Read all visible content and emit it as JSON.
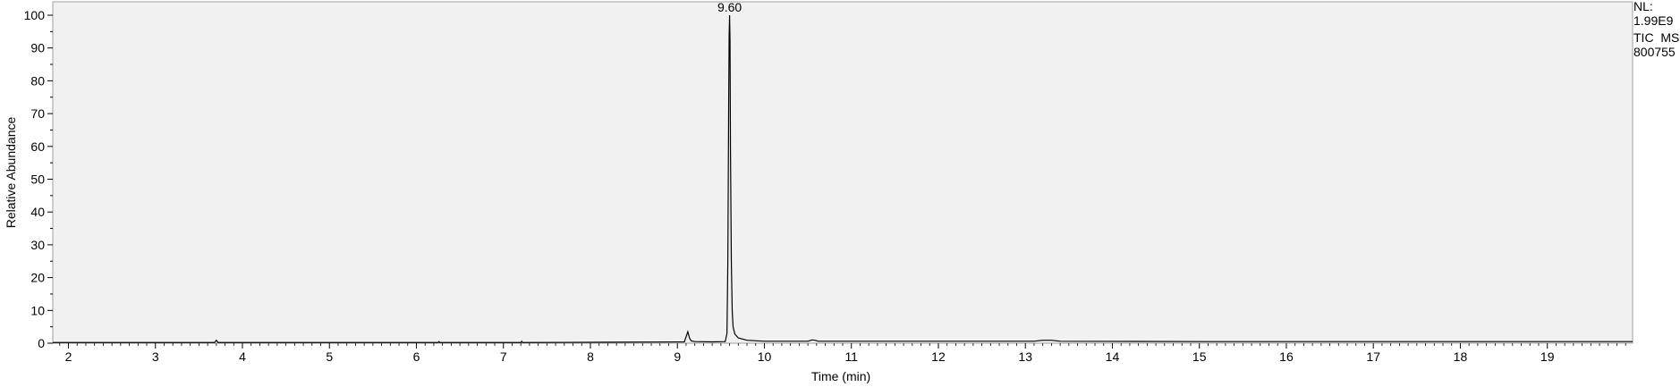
{
  "chart_data": {
    "type": "line",
    "title": "",
    "xlabel": "Time (min)",
    "ylabel": "Relative Abundance",
    "xlim": [
      1.82,
      19.98
    ],
    "ylim": [
      0,
      100
    ],
    "x_ticks": [
      2,
      3,
      4,
      5,
      6,
      7,
      8,
      9,
      10,
      11,
      12,
      13,
      14,
      15,
      16,
      17,
      18,
      19
    ],
    "y_ticks": [
      0,
      10,
      20,
      30,
      40,
      50,
      60,
      70,
      80,
      90,
      100
    ],
    "grid": false,
    "plot_background": "#f1f1f1",
    "line_color": "#000000",
    "annotations": [
      {
        "x": 9.6,
        "y": 100,
        "text": "9.60"
      }
    ],
    "info_block": [
      "NL:",
      "1.99E9",
      "TIC  MS",
      "800755"
    ],
    "series": [
      {
        "x": [
          1.82,
          3.68,
          3.7,
          3.72,
          6.25,
          6.26,
          6.27,
          7.2,
          7.21,
          7.22,
          8.2,
          9.08,
          9.1,
          9.12,
          9.14,
          9.16,
          9.2,
          9.4,
          9.55,
          9.57,
          9.58,
          9.59,
          9.595,
          9.6,
          9.605,
          9.61,
          9.62,
          9.63,
          9.64,
          9.66,
          9.7,
          9.8,
          10.0,
          10.5,
          10.55,
          10.58,
          10.62,
          13.1,
          13.2,
          13.3,
          13.4,
          15.0,
          19.98
        ],
        "y": [
          0.2,
          0.2,
          0.9,
          0.2,
          0.2,
          0.5,
          0.2,
          0.2,
          0.6,
          0.2,
          0.3,
          0.4,
          2.0,
          3.5,
          1.5,
          0.7,
          0.5,
          0.4,
          0.5,
          3.0,
          25.0,
          75.0,
          94.0,
          100,
          92.0,
          60.0,
          25.0,
          10.0,
          5.0,
          2.8,
          1.6,
          0.9,
          0.6,
          0.6,
          1.0,
          0.9,
          0.6,
          0.6,
          0.9,
          0.9,
          0.6,
          0.5,
          0.5
        ]
      }
    ]
  }
}
